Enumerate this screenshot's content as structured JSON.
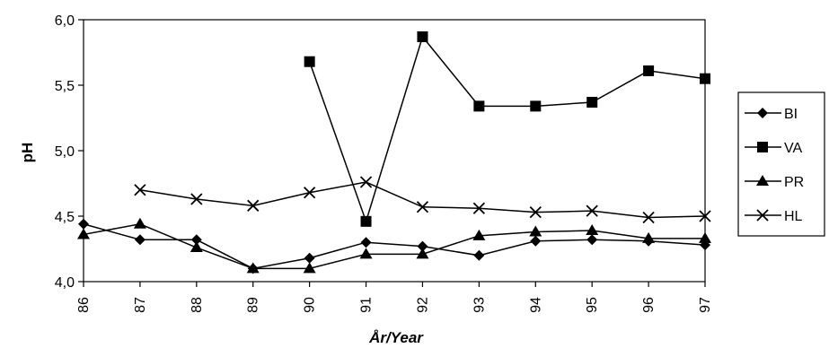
{
  "chart_data": {
    "type": "line",
    "categories": [
      "86",
      "87",
      "88",
      "89",
      "90",
      "91",
      "92",
      "93",
      "94",
      "95",
      "96",
      "97"
    ],
    "xlabel": "År/Year",
    "ylabel": "pH",
    "ylim": [
      4.0,
      6.0
    ],
    "yticks": [
      "4,0",
      "4,5",
      "5,0",
      "5,5",
      "6,0"
    ],
    "grid": false,
    "legend_position": "right",
    "series": [
      {
        "name": "BI",
        "marker": "diamond",
        "values": [
          4.44,
          4.32,
          4.32,
          4.1,
          4.18,
          4.3,
          4.27,
          4.2,
          4.31,
          4.32,
          4.31,
          4.28
        ]
      },
      {
        "name": "VA",
        "marker": "square",
        "values": [
          null,
          null,
          null,
          null,
          5.68,
          4.46,
          5.87,
          5.34,
          5.34,
          5.37,
          5.61,
          5.55
        ]
      },
      {
        "name": "PR",
        "marker": "triangle",
        "values": [
          4.36,
          4.44,
          4.26,
          4.1,
          4.1,
          4.21,
          4.21,
          4.35,
          4.38,
          4.39,
          4.33,
          4.33
        ]
      },
      {
        "name": "HL",
        "marker": "x",
        "values": [
          null,
          4.7,
          4.63,
          4.58,
          4.68,
          4.76,
          4.57,
          4.56,
          4.53,
          4.54,
          4.49,
          4.5
        ]
      }
    ]
  }
}
